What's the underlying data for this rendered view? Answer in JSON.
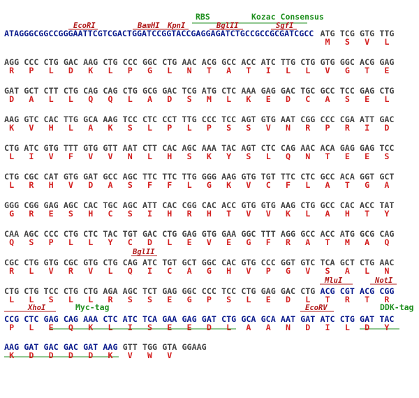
{
  "annotations": [
    {
      "label": "RBS"
    },
    {
      "label": "Kozac Consensus"
    },
    {
      "label": "EcoRI"
    },
    {
      "label": "BamHI"
    },
    {
      "label": "KpnI"
    },
    {
      "label": "BglII"
    },
    {
      "label": "SgfI"
    },
    {
      "label": "BglII"
    },
    {
      "label": "MluI"
    },
    {
      "label": "NotI"
    },
    {
      "label": "XhoI"
    },
    {
      "label": "Myc-tag"
    },
    {
      "label": "EcoRV"
    },
    {
      "label": "DDK-tag"
    }
  ],
  "rows": [
    {
      "prefix": "ATAGGGCGGCCGGGAATTCGTCGACTGGATCCGGTACCGAGGAGATCTGCCGCCGCGATCGCC",
      "codons": [
        "ATG",
        "TCG",
        "GTG",
        "TTG"
      ],
      "aa": [
        "M",
        "S",
        "V",
        "L"
      ]
    },
    {
      "codons": [
        "AGG",
        "CCC",
        "CTG",
        "GAC",
        "AAG",
        "CTG",
        "CCC",
        "GGC",
        "CTG",
        "AAC",
        "ACG",
        "GCC",
        "ACC",
        "ATC",
        "TTG",
        "CTG",
        "GTG",
        "GGC",
        "ACG",
        "GAG"
      ],
      "aa": [
        "R",
        "P",
        "L",
        "D",
        "K",
        "L",
        "P",
        "G",
        "L",
        "N",
        "T",
        "A",
        "T",
        "I",
        "L",
        "L",
        "V",
        "G",
        "T",
        "E"
      ]
    },
    {
      "codons": [
        "GAT",
        "GCT",
        "CTT",
        "CTG",
        "CAG",
        "CAG",
        "CTG",
        "GCG",
        "GAC",
        "TCG",
        "ATG",
        "CTC",
        "AAA",
        "GAG",
        "GAC",
        "TGC",
        "GCC",
        "TCC",
        "GAG",
        "CTG"
      ],
      "aa": [
        "D",
        "A",
        "L",
        "L",
        "Q",
        "Q",
        "L",
        "A",
        "D",
        "S",
        "M",
        "L",
        "K",
        "E",
        "D",
        "C",
        "A",
        "S",
        "E",
        "L"
      ]
    },
    {
      "codons": [
        "AAG",
        "GTC",
        "CAC",
        "TTG",
        "GCA",
        "AAG",
        "TCC",
        "CTC",
        "CCT",
        "TTG",
        "CCC",
        "TCC",
        "AGT",
        "GTG",
        "AAT",
        "CGG",
        "CCC",
        "CGA",
        "ATT",
        "GAC"
      ],
      "aa": [
        "K",
        "V",
        "H",
        "L",
        "A",
        "K",
        "S",
        "L",
        "P",
        "L",
        "P",
        "S",
        "S",
        "V",
        "N",
        "R",
        "P",
        "R",
        "I",
        "D"
      ]
    },
    {
      "codons": [
        "CTG",
        "ATC",
        "GTG",
        "TTT",
        "GTG",
        "GTT",
        "AAT",
        "CTT",
        "CAC",
        "AGC",
        "AAA",
        "TAC",
        "AGT",
        "CTC",
        "CAG",
        "AAC",
        "ACA",
        "GAG",
        "GAG",
        "TCC"
      ],
      "aa": [
        "L",
        "I",
        "V",
        "F",
        "V",
        "V",
        "N",
        "L",
        "H",
        "S",
        "K",
        "Y",
        "S",
        "L",
        "Q",
        "N",
        "T",
        "E",
        "E",
        "S"
      ]
    },
    {
      "codons": [
        "CTG",
        "CGC",
        "CAT",
        "GTG",
        "GAT",
        "GCC",
        "AGC",
        "TTC",
        "TTC",
        "TTG",
        "GGG",
        "AAG",
        "GTG",
        "TGT",
        "TTC",
        "CTC",
        "GCC",
        "ACA",
        "GGT",
        "GCT"
      ],
      "aa": [
        "L",
        "R",
        "H",
        "V",
        "D",
        "A",
        "S",
        "F",
        "F",
        "L",
        "G",
        "K",
        "V",
        "C",
        "F",
        "L",
        "A",
        "T",
        "G",
        "A"
      ]
    },
    {
      "codons": [
        "GGG",
        "CGG",
        "GAG",
        "AGC",
        "CAC",
        "TGC",
        "AGC",
        "ATT",
        "CAC",
        "CGG",
        "CAC",
        "ACC",
        "GTG",
        "GTG",
        "AAG",
        "CTG",
        "GCC",
        "CAC",
        "ACC",
        "TAT"
      ],
      "aa": [
        "G",
        "R",
        "E",
        "S",
        "H",
        "C",
        "S",
        "I",
        "H",
        "R",
        "H",
        "T",
        "V",
        "V",
        "K",
        "L",
        "A",
        "H",
        "T",
        "Y"
      ]
    },
    {
      "codons": [
        "CAA",
        "AGC",
        "CCC",
        "CTG",
        "CTC",
        "TAC",
        "TGT",
        "GAC",
        "CTG",
        "GAG",
        "GTG",
        "GAA",
        "GGC",
        "TTT",
        "AGG",
        "GCC",
        "ACC",
        "ATG",
        "GCG",
        "CAG"
      ],
      "aa": [
        "Q",
        "S",
        "P",
        "L",
        "L",
        "Y",
        "C",
        "D",
        "L",
        "E",
        "V",
        "E",
        "G",
        "F",
        "R",
        "A",
        "T",
        "M",
        "A",
        "Q"
      ]
    },
    {
      "codons": [
        "CGC",
        "CTG",
        "GTG",
        "CGC",
        "GTG",
        "CTG",
        "CAG",
        "ATC",
        "TGT",
        "GCT",
        "GGC",
        "CAC",
        "GTG",
        "CCC",
        "GGT",
        "GTC",
        "TCA",
        "GCT",
        "CTG",
        "AAC"
      ],
      "aa": [
        "R",
        "L",
        "V",
        "R",
        "V",
        "L",
        "Q",
        "I",
        "C",
        "A",
        "G",
        "H",
        "V",
        "P",
        "G",
        "V",
        "S",
        "A",
        "L",
        "N"
      ]
    },
    {
      "codons": [
        "CTG",
        "CTG",
        "TCC",
        "CTG",
        "CTG",
        "AGA",
        "AGC",
        "TCT",
        "GAG",
        "GGC",
        "CCC",
        "TCC",
        "CTG",
        "GAG",
        "GAC",
        "CTG",
        "ACG",
        "CGT",
        "ACG",
        "CGG"
      ],
      "aa": [
        "L",
        "L",
        "S",
        "L",
        "L",
        "R",
        "S",
        "S",
        "E",
        "G",
        "P",
        "S",
        "L",
        "E",
        "D",
        "L",
        "T",
        "R",
        "T",
        "R"
      ]
    },
    {
      "codons": [
        "CCG",
        "CTC",
        "GAG",
        "CAG",
        "AAA",
        "CTC",
        "ATC",
        "TCA",
        "GAA",
        "GAG",
        "GAT",
        "CTG",
        "GCA",
        "GCA",
        "AAT",
        "GAT",
        "ATC",
        "CTG",
        "GAT",
        "TAC"
      ],
      "aa": [
        "P",
        "L",
        "E",
        "Q",
        "K",
        "L",
        "I",
        "S",
        "E",
        "E",
        "D",
        "L",
        "A",
        "A",
        "N",
        "D",
        "I",
        "L",
        "D",
        "Y"
      ]
    },
    {
      "codons": [
        "AAG",
        "GAT",
        "GAC",
        "GAC",
        "GAT",
        "AAG",
        "GTT",
        "TGG",
        "GTA",
        "GGAAG"
      ],
      "aa": [
        "K",
        "D",
        "D",
        "D",
        "D",
        "K",
        "V",
        "W",
        "V"
      ]
    }
  ]
}
